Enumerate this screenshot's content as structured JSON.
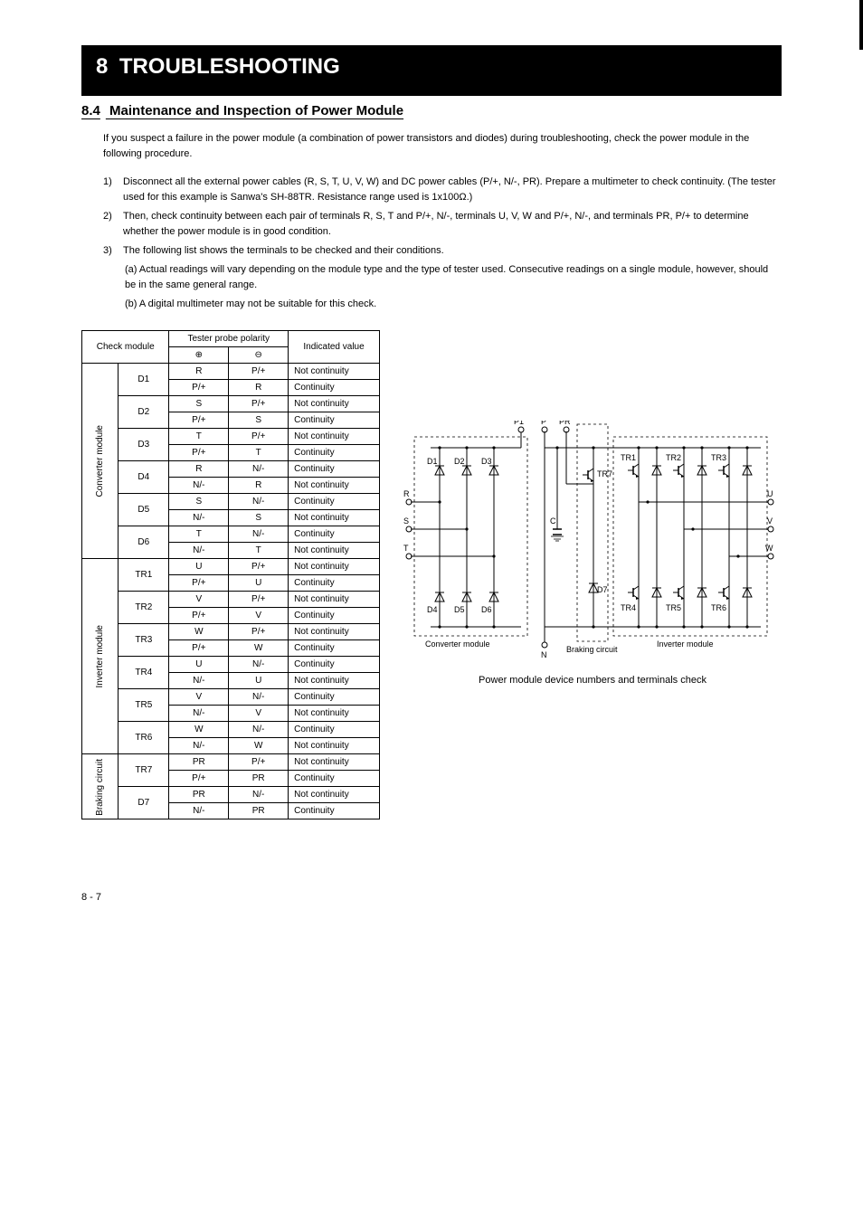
{
  "header": {
    "chapter_num": "8",
    "chapter_title": "TROUBLESHOOTING"
  },
  "section": {
    "number": "8.4",
    "title": "Maintenance and Inspection of Power Module"
  },
  "intro": "If you suspect a failure in the power module (a combination of power transistors and diodes) during troubleshooting, check the power module in the following procedure.",
  "steps": {
    "1": {
      "marker": "1)",
      "text": "Disconnect all the external power cables (R, S, T, U, V, W) and DC power cables (P/+, N/-, PR). Prepare a multimeter to check continuity. (The tester used for this example is Sanwa's SH-88TR. Resistance range used is 1x100Ω.)"
    },
    "2": {
      "marker": "2)",
      "text": "Then, check continuity between each pair of terminals R, S, T and P/+, N/-, terminals U, V, W and P/+, N/-, and terminals PR, P/+ to determine whether the power module is in good condition."
    },
    "3": {
      "marker": "3)",
      "text": "The following list shows the terminals to be checked and their conditions.",
      "sub_a": "(a)  Actual readings will vary depending on the module type and the type of tester used. Consecutive readings on a single module, however, should be in the same general range.",
      "sub_b": "(b)  A digital multimeter may not be suitable for this check."
    }
  },
  "table": {
    "col_headers": [
      "",
      "",
      "Tester probe polarity",
      "",
      "Indicated value"
    ],
    "sub_headers": [
      "Check module",
      "⊕",
      "⊖"
    ],
    "groups": [
      {
        "label": "Converter module",
        "rowspan": 12,
        "rows": [
          {
            "sub": [
              "D1",
              2
            ],
            "cells": [
              [
                "R",
                "P/+",
                "Not continuity"
              ],
              [
                "P/+",
                "R",
                "Continuity"
              ]
            ]
          },
          {
            "sub": [
              "D2",
              2
            ],
            "cells": [
              [
                "S",
                "P/+",
                "Not continuity"
              ],
              [
                "P/+",
                "S",
                "Continuity"
              ]
            ]
          },
          {
            "sub": [
              "D3",
              2
            ],
            "cells": [
              [
                "T",
                "P/+",
                "Not continuity"
              ],
              [
                "P/+",
                "T",
                "Continuity"
              ]
            ]
          },
          {
            "sub": [
              "D4",
              2
            ],
            "cells": [
              [
                "R",
                "N/-",
                "Continuity"
              ],
              [
                "N/-",
                "R",
                "Not continuity"
              ]
            ]
          },
          {
            "sub": [
              "D5",
              2
            ],
            "cells": [
              [
                "S",
                "N/-",
                "Continuity"
              ],
              [
                "N/-",
                "S",
                "Not continuity"
              ]
            ]
          },
          {
            "sub": [
              "D6",
              2
            ],
            "cells": [
              [
                "T",
                "N/-",
                "Continuity"
              ],
              [
                "N/-",
                "T",
                "Not continuity"
              ]
            ]
          }
        ]
      },
      {
        "label": "Inverter module",
        "rowspan": 12,
        "rows": [
          {
            "sub": [
              "TR1",
              2
            ],
            "cells": [
              [
                "U",
                "P/+",
                "Not continuity"
              ],
              [
                "P/+",
                "U",
                "Continuity"
              ]
            ]
          },
          {
            "sub": [
              "TR2",
              2
            ],
            "cells": [
              [
                "V",
                "P/+",
                "Not continuity"
              ],
              [
                "P/+",
                "V",
                "Continuity"
              ]
            ]
          },
          {
            "sub": [
              "TR3",
              2
            ],
            "cells": [
              [
                "W",
                "P/+",
                "Not continuity"
              ],
              [
                "P/+",
                "W",
                "Continuity"
              ]
            ]
          },
          {
            "sub": [
              "TR4",
              2
            ],
            "cells": [
              [
                "U",
                "N/-",
                "Continuity"
              ],
              [
                "N/-",
                "U",
                "Not continuity"
              ]
            ]
          },
          {
            "sub": [
              "TR5",
              2
            ],
            "cells": [
              [
                "V",
                "N/-",
                "Continuity"
              ],
              [
                "N/-",
                "V",
                "Not continuity"
              ]
            ]
          },
          {
            "sub": [
              "TR6",
              2
            ],
            "cells": [
              [
                "W",
                "N/-",
                "Continuity"
              ],
              [
                "N/-",
                "W",
                "Not continuity"
              ]
            ]
          }
        ]
      },
      {
        "label": "Braking circuit",
        "rowspan": 4,
        "rows": [
          {
            "sub": [
              "TR7",
              2
            ],
            "cells": [
              [
                "PR",
                "P/+",
                "Not continuity"
              ],
              [
                "P/+",
                "PR",
                "Continuity"
              ]
            ]
          },
          {
            "sub": [
              "D7",
              2
            ],
            "cells": [
              [
                "PR",
                "N/-",
                "Not continuity"
              ],
              [
                "N/-",
                "PR",
                "Continuity"
              ]
            ]
          }
        ]
      }
    ]
  },
  "diagram": {
    "labels": {
      "P1": "P1",
      "P": "P",
      "PR": "PR",
      "R": "R",
      "S": "S",
      "T": "T",
      "U": "U",
      "V": "V",
      "W": "W",
      "N": "N",
      "C": "C",
      "D1": "D1",
      "D2": "D2",
      "D3": "D3",
      "D4": "D4",
      "D5": "D5",
      "D6": "D6",
      "D7": "D7",
      "TR1": "TR1",
      "TR2": "TR2",
      "TR3": "TR3",
      "TR4": "TR4",
      "TR5": "TR5",
      "TR6": "TR6",
      "TR7": "TR7",
      "conv": "Converter module",
      "inv": "Inverter module",
      "brake": "Braking circuit",
      "caption": "Power module device numbers and terminals check"
    }
  },
  "footer": {
    "page": "8 - 7"
  },
  "colors": {
    "text": "#000000",
    "bg": "#ffffff"
  }
}
